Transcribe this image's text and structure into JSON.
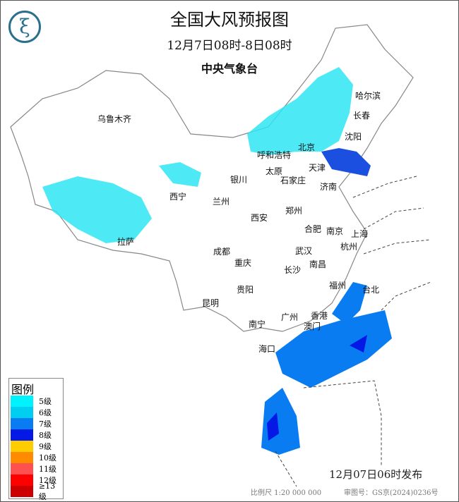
{
  "header": {
    "title": "全国大风预报图",
    "period": "12月7日08时-8日08时",
    "issuer": "中央气象台",
    "logo_icon": "cma-logo-icon"
  },
  "legend": {
    "title": "图例",
    "items": [
      {
        "label": "5级",
        "color": "#00f2ff"
      },
      {
        "label": "6级",
        "color": "#00cef0"
      },
      {
        "label": "7级",
        "color": "#0a7cf2"
      },
      {
        "label": "8级",
        "color": "#0418e6"
      },
      {
        "label": "9级",
        "color": "#ffcc00"
      },
      {
        "label": "10级",
        "color": "#ff8c00"
      },
      {
        "label": "11级",
        "color": "#ff5050"
      },
      {
        "label": "12级",
        "color": "#ff0000"
      },
      {
        "label": "≥13级",
        "color": "#cc0000"
      }
    ]
  },
  "cities": [
    "哈尔滨",
    "长春",
    "沈阳",
    "乌鲁木齐",
    "呼和浩特",
    "北京",
    "天津",
    "太原",
    "石家庄",
    "银川",
    "西宁",
    "兰州",
    "济南",
    "郑州",
    "西安",
    "合肥",
    "南京",
    "上海",
    "杭州",
    "拉萨",
    "成都",
    "武汉",
    "重庆",
    "南昌",
    "长沙",
    "福州",
    "台北",
    "贵阳",
    "昆明",
    "南宁",
    "广州",
    "香港",
    "澳门",
    "海口"
  ],
  "footer": {
    "issued": "12月07日06时发布",
    "scale": "比例尺 1:20 000 000",
    "review_no": "审图号：GS京(2024)0236号"
  }
}
